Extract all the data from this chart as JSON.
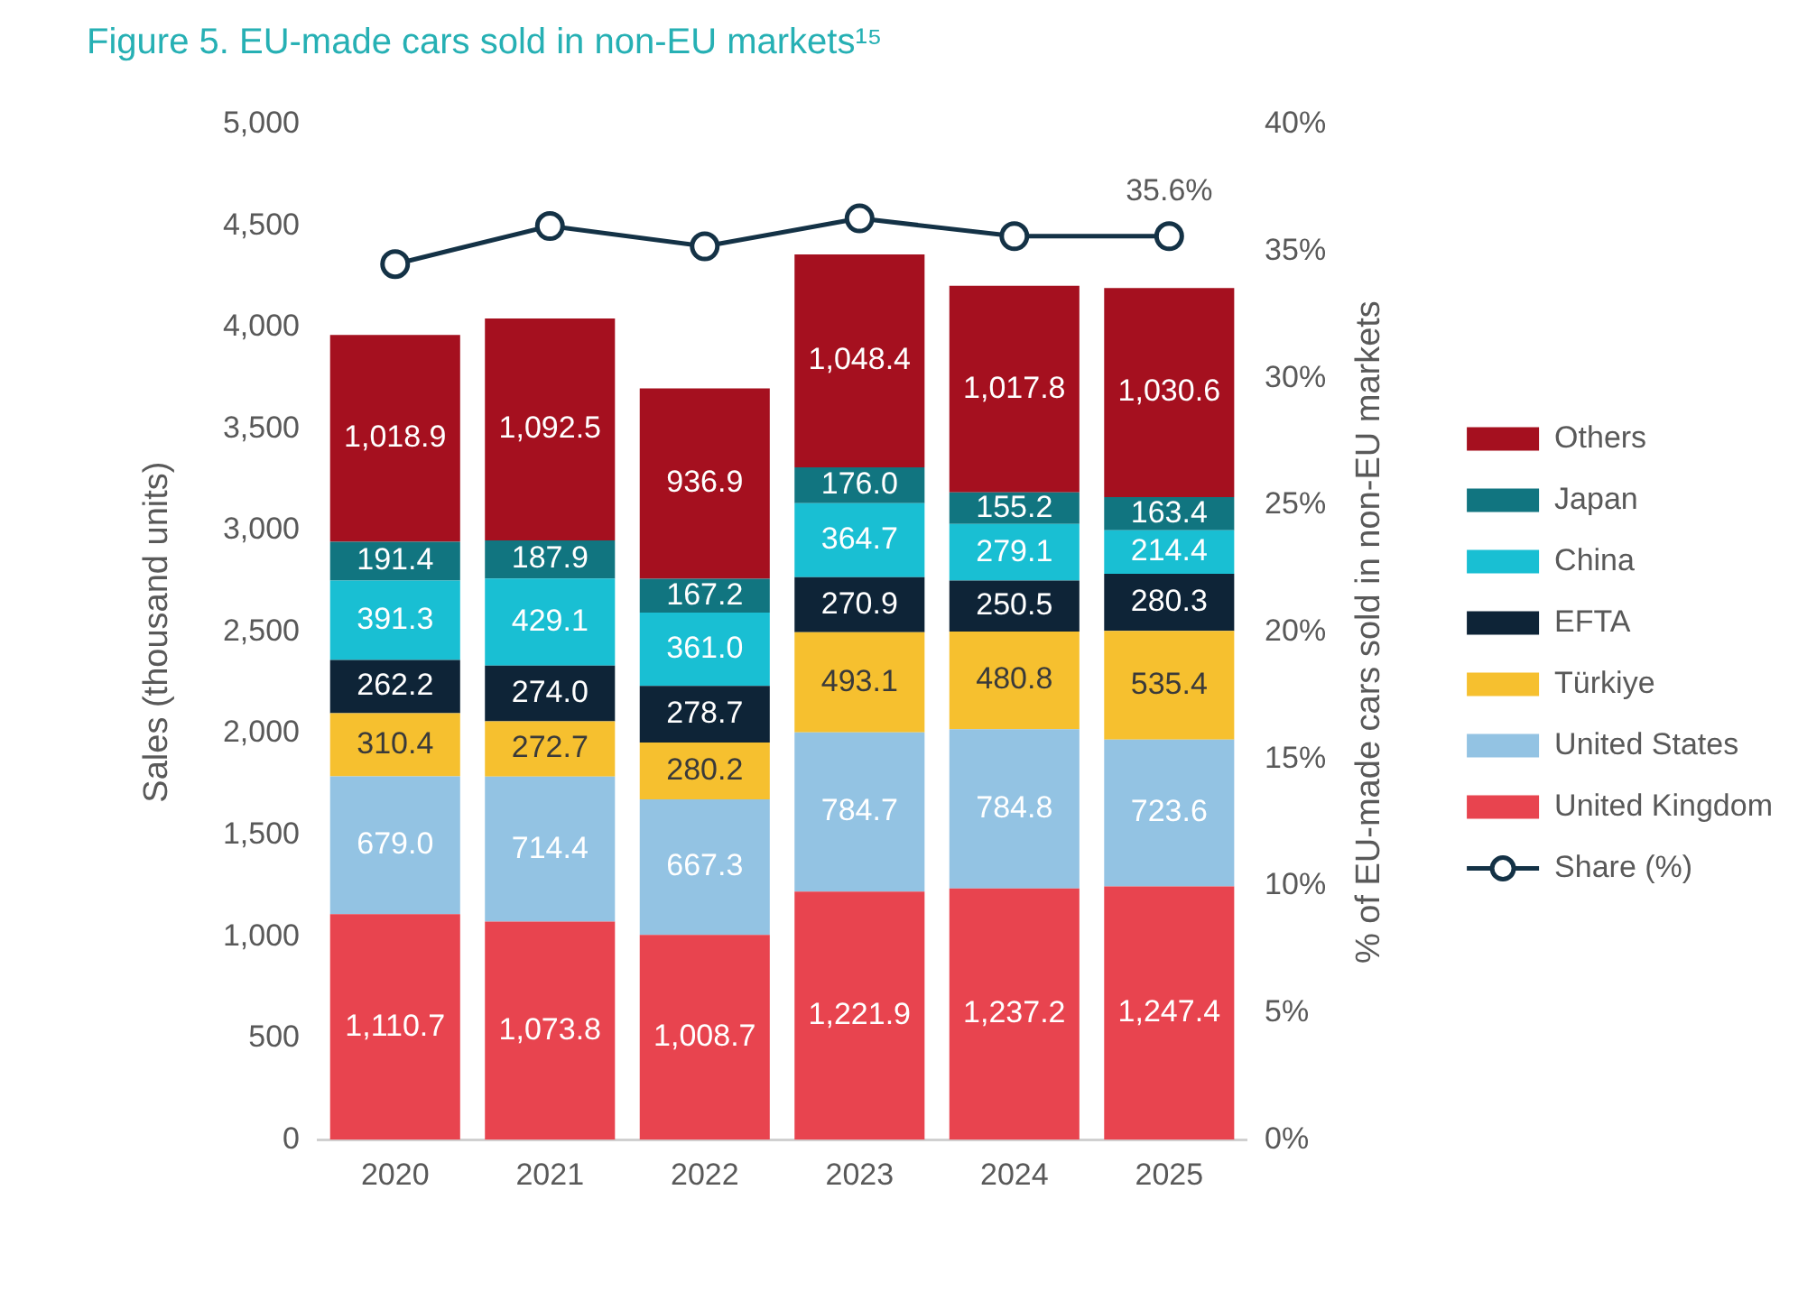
{
  "chart_data": {
    "type": "bar",
    "stacked": true,
    "title": "Figure 5. EU-made cars sold in non-EU markets¹⁵",
    "ylabel": "Sales (thousand units)",
    "y2label": "% of EU-made cars sold in non-EU markets",
    "categories": [
      "2020",
      "2021",
      "2022",
      "2023",
      "2024",
      "2025"
    ],
    "ylim": [
      0,
      5000
    ],
    "yticks": [
      0,
      500,
      {
        "value": 1000,
        "label": "1,000"
      },
      {
        "value": 1500,
        "label": "1,500"
      },
      {
        "value": 2000,
        "label": "2,000"
      },
      {
        "value": 2500,
        "label": "2,500"
      },
      {
        "value": 3000,
        "label": "3,000"
      },
      {
        "value": 3500,
        "label": "3,500"
      },
      {
        "value": 4000,
        "label": "4,000"
      },
      {
        "value": 4500,
        "label": "4,500"
      },
      {
        "value": 5000,
        "label": "5,000"
      }
    ],
    "y2lim": [
      0,
      40
    ],
    "y2ticks": [
      {
        "value": 0,
        "label": "0%"
      },
      {
        "value": 5,
        "label": "5%"
      },
      {
        "value": 10,
        "label": "10%"
      },
      {
        "value": 15,
        "label": "15%"
      },
      {
        "value": 20,
        "label": "20%"
      },
      {
        "value": 25,
        "label": "25%"
      },
      {
        "value": 30,
        "label": "30%"
      },
      {
        "value": 35,
        "label": "35%"
      },
      {
        "value": 40,
        "label": "40%"
      }
    ],
    "grid": false,
    "legend": "right",
    "series": [
      {
        "name": "United Kingdom",
        "color": "#e8444f",
        "values": [
          1110.7,
          1073.8,
          1008.7,
          1221.9,
          1237.2,
          1247.4
        ],
        "value_labels": [
          "1,110.7",
          "1,073.8",
          "1,008.7",
          "1,221.9",
          "1,237.2",
          "1,247.4"
        ]
      },
      {
        "name": "United States",
        "color": "#93c3e3",
        "values": [
          679.0,
          714.4,
          667.3,
          784.7,
          784.8,
          723.6
        ],
        "value_labels": [
          "679.0",
          "714.4",
          "667.3",
          "784.7",
          "784.8",
          "723.6"
        ]
      },
      {
        "name": "Türkiye",
        "color": "#f6c02f",
        "values": [
          310.4,
          272.7,
          280.2,
          493.1,
          480.8,
          535.4
        ],
        "value_labels": [
          "310.4",
          "272.7",
          "280.2",
          "493.1",
          "480.8",
          "535.4"
        ]
      },
      {
        "name": "EFTA",
        "color": "#0e2437",
        "values": [
          262.2,
          274.0,
          278.7,
          270.9,
          250.5,
          280.3
        ],
        "value_labels": [
          "262.2",
          "274.0",
          "278.7",
          "270.9",
          "250.5",
          "280.3"
        ]
      },
      {
        "name": "China",
        "color": "#19bfd3",
        "values": [
          391.3,
          429.1,
          361.0,
          364.7,
          279.1,
          214.4
        ],
        "value_labels": [
          "391.3",
          "429.1",
          "361.0",
          "364.7",
          "279.1",
          "214.4"
        ]
      },
      {
        "name": "Japan",
        "color": "#117580",
        "values": [
          191.4,
          187.9,
          167.2,
          176.0,
          155.2,
          163.4
        ],
        "value_labels": [
          "191.4",
          "187.9",
          "167.2",
          "176.0",
          "155.2",
          "163.4"
        ]
      },
      {
        "name": "Others",
        "color": "#a5101f",
        "values": [
          1018.9,
          1092.5,
          936.9,
          1048.4,
          1017.8,
          1030.6
        ],
        "value_labels": [
          "1,018.9",
          "1,092.5",
          "936.9",
          "1,048.4",
          "1,017.8",
          "1,030.6"
        ]
      },
      {
        "name": "Share (%)",
        "type": "line",
        "axis": "y2",
        "color": "#143246",
        "marker": "circle",
        "values": [
          34.5,
          36.0,
          35.2,
          36.3,
          35.6,
          35.6
        ],
        "value_labels": [
          null,
          null,
          null,
          null,
          null,
          "35.6%"
        ]
      }
    ]
  }
}
